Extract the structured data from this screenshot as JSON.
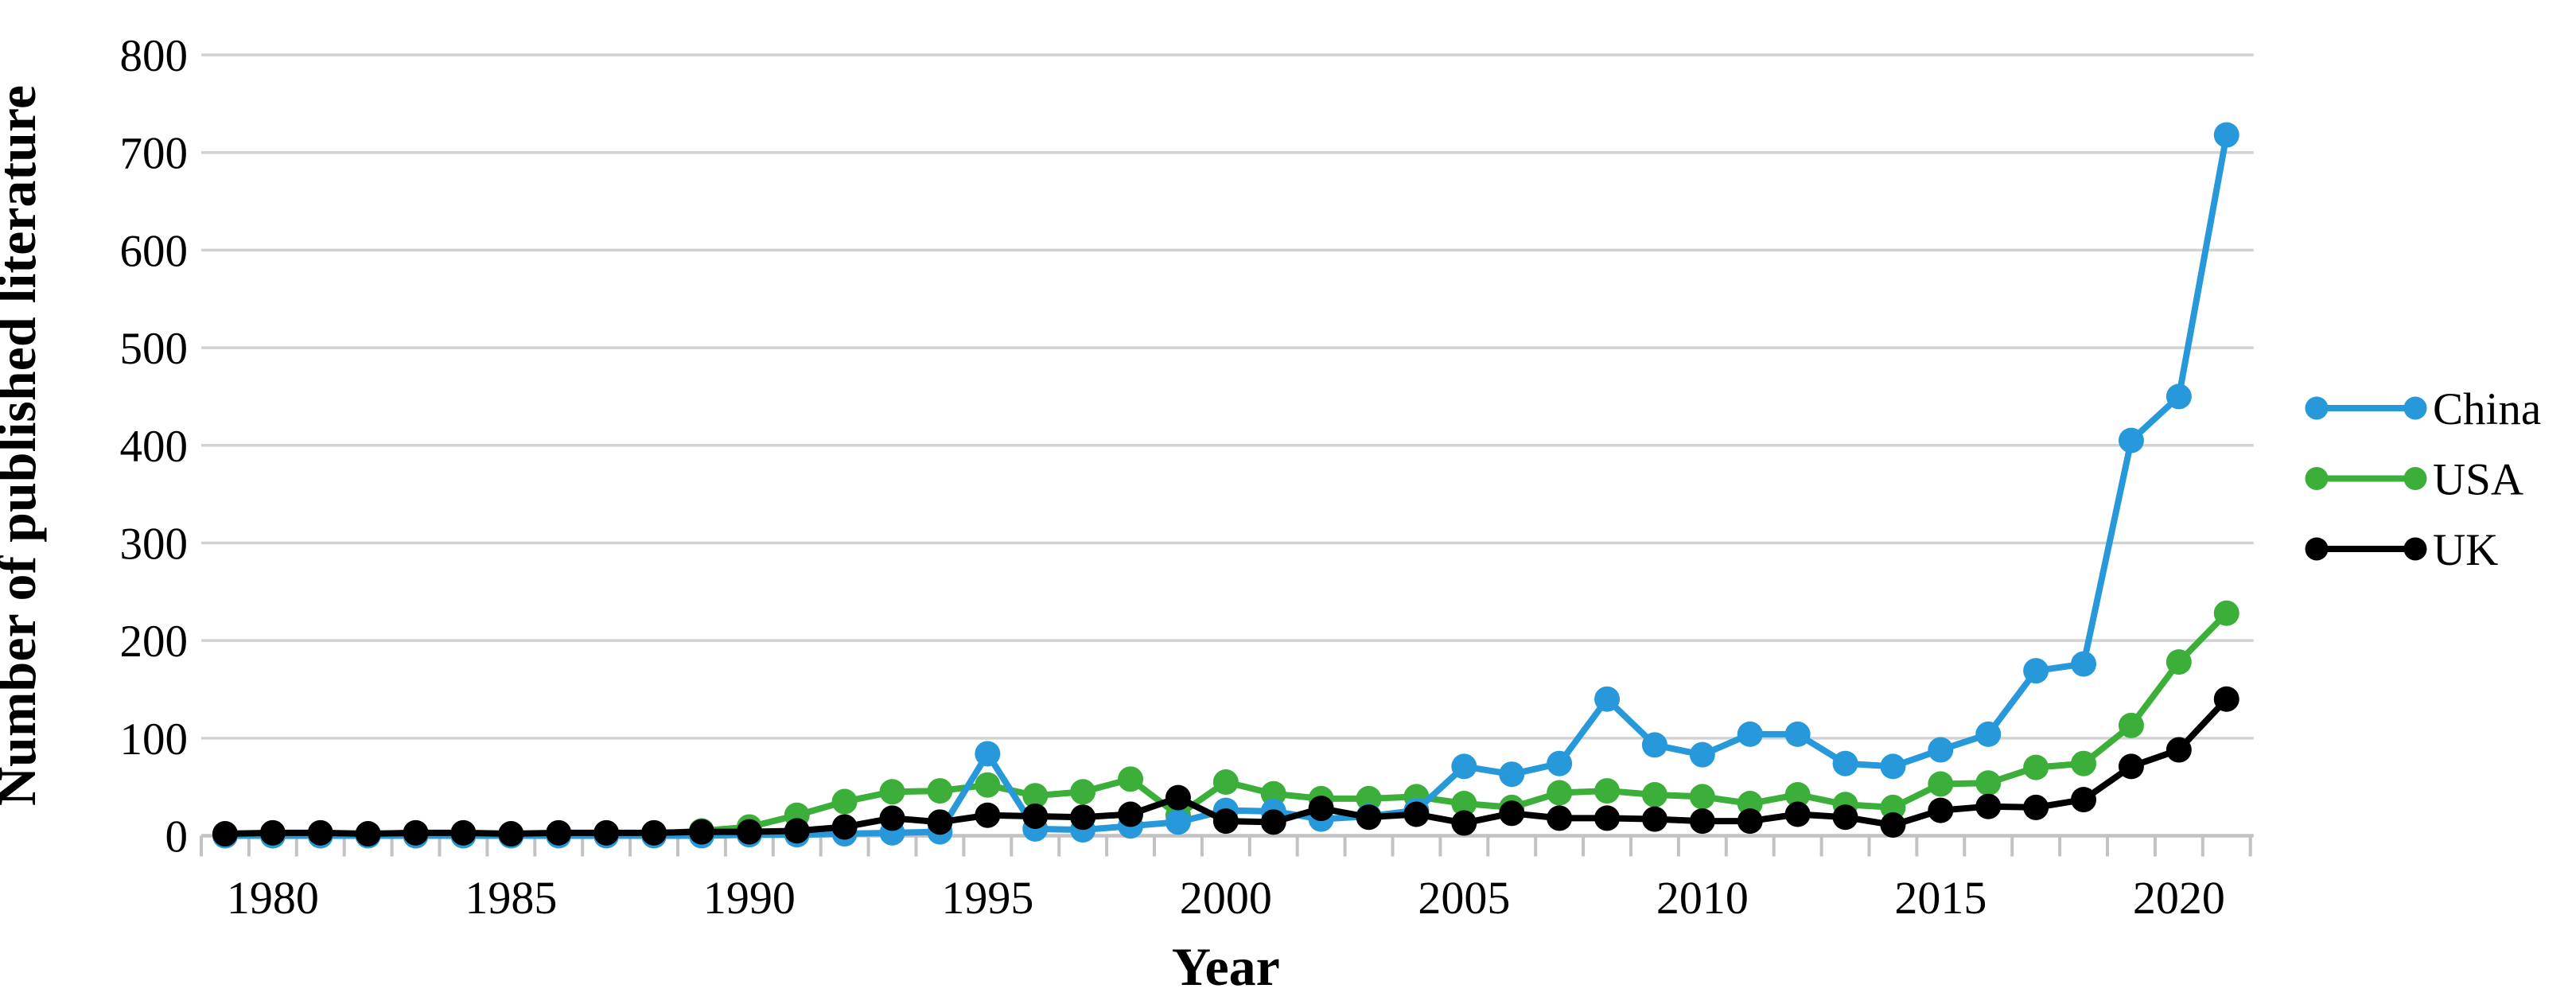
{
  "figure": {
    "kind": "line-chart-figure",
    "background": "#ffffff"
  },
  "chart_data": {
    "type": "line",
    "title": "",
    "xlabel": "Year",
    "ylabel": "Number of published literature",
    "x": [
      1979,
      1980,
      1981,
      1982,
      1983,
      1984,
      1985,
      1986,
      1987,
      1988,
      1989,
      1990,
      1991,
      1992,
      1993,
      1994,
      1995,
      1996,
      1997,
      1998,
      1999,
      2000,
      2001,
      2002,
      2003,
      2004,
      2005,
      2006,
      2007,
      2008,
      2009,
      2010,
      2011,
      2012,
      2013,
      2014,
      2015,
      2016,
      2017,
      2018,
      2019,
      2020,
      2021
    ],
    "x_tick_labels": [
      "1980",
      "1985",
      "1990",
      "1995",
      "2000",
      "2005",
      "2010",
      "2015",
      "2020"
    ],
    "y_tick_labels": [
      "0",
      "100",
      "200",
      "300",
      "400",
      "500",
      "600",
      "700",
      "800"
    ],
    "y_ticks": [
      0,
      100,
      200,
      300,
      400,
      500,
      600,
      700,
      800
    ],
    "ylim": [
      0,
      800
    ],
    "grid": true,
    "legend_position": "right",
    "colors": {
      "china": "#2799da",
      "usa": "#3caf3b",
      "uk": "#000000",
      "gridline": "#d2d2d2",
      "axis": "#c2c2c2",
      "text": "#000000"
    },
    "series": [
      {
        "name": "USA",
        "color": "#3caf3b",
        "values": [
          0,
          0,
          0,
          0,
          0,
          0,
          0,
          1,
          1,
          2,
          5,
          9,
          21,
          35,
          45,
          46,
          52,
          41,
          45,
          58,
          21,
          55,
          43,
          38,
          38,
          40,
          33,
          29,
          44,
          46,
          42,
          40,
          33,
          42,
          32,
          29,
          53,
          54,
          70,
          74,
          113,
          178,
          228
        ]
      },
      {
        "name": "China",
        "color": "#2799da",
        "values": [
          0,
          0,
          0,
          0,
          0,
          0,
          0,
          0,
          0,
          0,
          0,
          1,
          1,
          2,
          3,
          4,
          84,
          7,
          6,
          10,
          14,
          26,
          25,
          17,
          20,
          26,
          71,
          63,
          74,
          140,
          93,
          83,
          104,
          104,
          74,
          71,
          88,
          104,
          169,
          176,
          405,
          450,
          718
        ]
      },
      {
        "name": "UK",
        "color": "#000000",
        "values": [
          2,
          3,
          3,
          2,
          3,
          3,
          2,
          3,
          3,
          3,
          4,
          4,
          5,
          9,
          18,
          14,
          21,
          20,
          19,
          22,
          39,
          15,
          14,
          28,
          19,
          22,
          13,
          23,
          18,
          18,
          17,
          15,
          15,
          22,
          19,
          11,
          26,
          30,
          29,
          37,
          71,
          88,
          140
        ]
      }
    ],
    "legend": [
      {
        "label": "China",
        "color": "#2799da"
      },
      {
        "label": "USA",
        "color": "#3caf3b"
      },
      {
        "label": "UK",
        "color": "#000000"
      }
    ]
  }
}
